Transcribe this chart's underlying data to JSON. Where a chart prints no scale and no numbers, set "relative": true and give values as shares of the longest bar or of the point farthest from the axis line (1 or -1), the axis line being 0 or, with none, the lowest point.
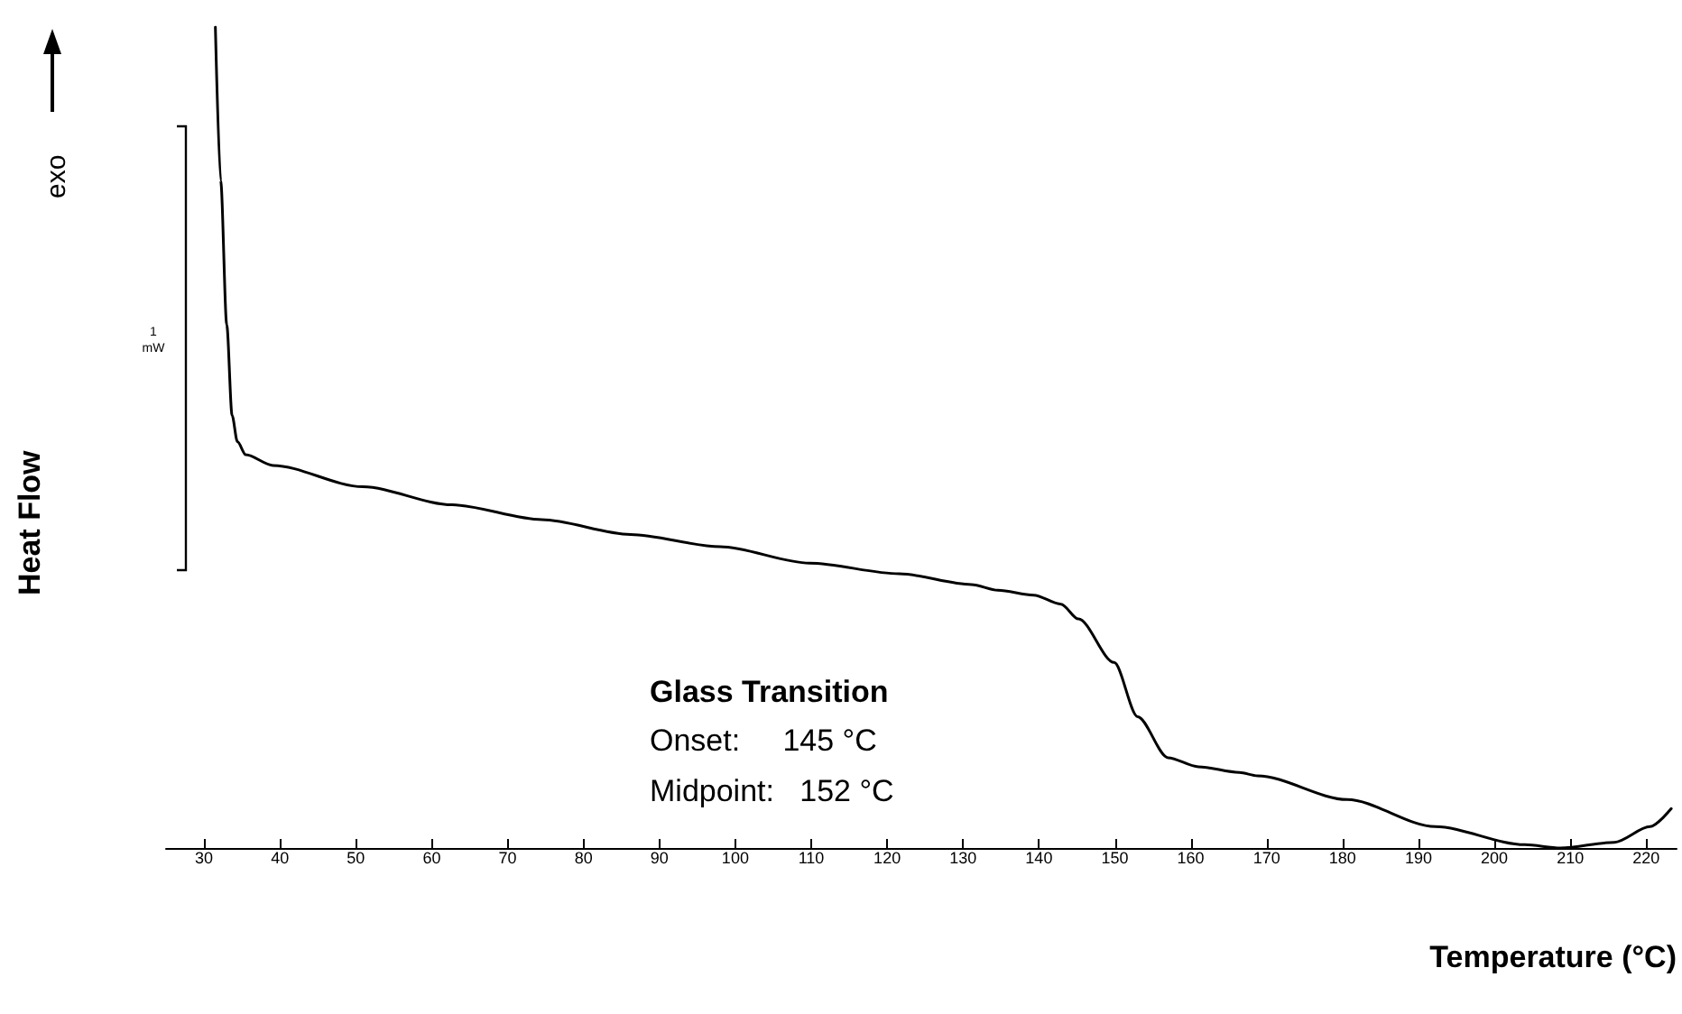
{
  "chart_data": {
    "type": "line",
    "relative": true,
    "xlabel": "Temperature (°C)",
    "ylabel": "Heat Flow",
    "xlim": [
      25,
      224
    ],
    "xticks": [
      30,
      40,
      50,
      60,
      70,
      80,
      90,
      100,
      110,
      120,
      130,
      140,
      150,
      160,
      170,
      180,
      190,
      200,
      210,
      220
    ],
    "x": [
      31.5,
      32.2,
      33.0,
      33.7,
      34.4,
      35.5,
      39.1,
      50.9,
      62.7,
      74.5,
      86.2,
      98.0,
      109.8,
      121.6,
      131.1,
      134.6,
      139.3,
      142.9,
      145.2,
      149.9,
      153.0,
      157.0,
      161.0,
      166.4,
      168.8,
      180.6,
      192.2,
      204.0,
      208.7,
      215.8,
      220.5,
      223.3
    ],
    "series": [
      {
        "color": "#000000",
        "values": [
          1,
          0.813,
          0.637,
          0.527,
          0.495,
          0.479,
          0.466,
          0.44,
          0.418,
          0.4,
          0.382,
          0.367,
          0.347,
          0.334,
          0.321,
          0.314,
          0.308,
          0.297,
          0.279,
          0.226,
          0.16,
          0.11,
          0.099,
          0.092,
          0.088,
          0.059,
          0.026,
          0.004,
          0,
          0.007,
          0.026,
          0.048
        ]
      }
    ],
    "annotations": [
      "exo",
      "1 mW",
      "Glass Transition",
      "Onset:     145 °C",
      "Midpoint:   152 °C"
    ],
    "marker": "none",
    "line_style": "solid",
    "grid": false
  }
}
